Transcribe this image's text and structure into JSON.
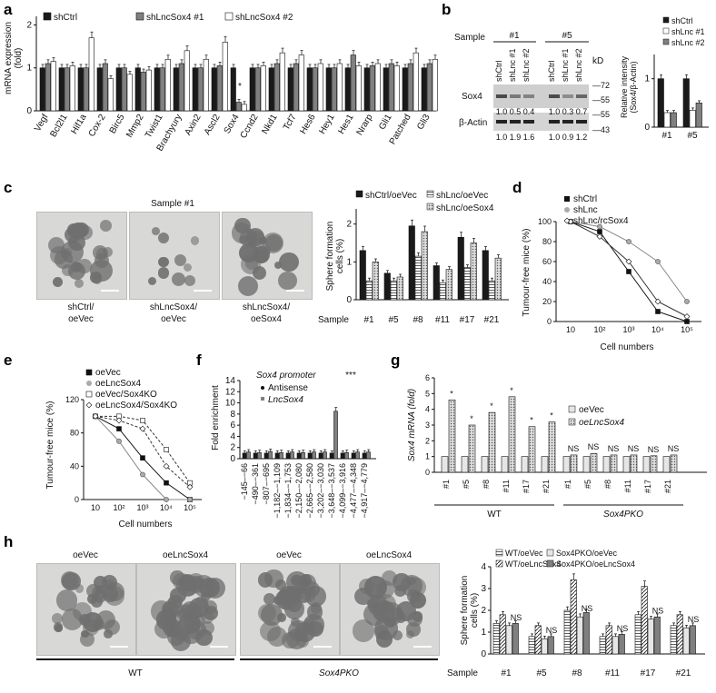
{
  "panels": [
    "a",
    "b",
    "c",
    "d",
    "e",
    "f",
    "g",
    "h"
  ],
  "panel_a": {
    "ylabel": "mRNA expression\n(fold)",
    "yticks": [
      "0",
      "1",
      "2"
    ],
    "legend": [
      "shCtrl",
      "shLncSox4 #1",
      "shLncSox4 #2"
    ],
    "genes": [
      "Vegf",
      "Bcl2l1",
      "Hif1a",
      "Cox-2",
      "Birc5",
      "Mmp2",
      "Twist1",
      "Brachyury",
      "Axin2",
      "Ascl2",
      "Sox4",
      "Ccnd2",
      "Nkd1",
      "Tcf7",
      "Hes6",
      "Hey1",
      "Hes1",
      "Nrarp",
      "Gli1",
      "Patched",
      "Gli3"
    ]
  },
  "panel_b": {
    "sample_label": "Sample",
    "samples": [
      "#1",
      "#5"
    ],
    "lanes": [
      "shCtrl",
      "shLnc #1",
      "shLnc #2",
      "shCtrl",
      "shLnc #1",
      "shLnc #2"
    ],
    "kd_label": "kD",
    "kd_markers": [
      "72",
      "55",
      "55",
      "43"
    ],
    "sox4_label": "Sox4",
    "actin_label": "β-Actin",
    "sox4_values": [
      "1.0",
      "0.5",
      "0.4",
      "1.0",
      "0.3",
      "0.7"
    ],
    "actin_values": [
      "1.0",
      "1.9",
      "1.6",
      "1.0",
      "0.9",
      "1.2"
    ],
    "bar_ylabel": "Relative intensity\n(Sox4/β-Actin)",
    "bar_yticks": [
      "0",
      "1"
    ],
    "legend": [
      "shCtrl",
      "shLnc #1",
      "shLnc #2"
    ],
    "categories": [
      "#1",
      "#5"
    ]
  },
  "panel_c": {
    "title": "Sample  #1",
    "image_labels": [
      "shCtrl/\noeVec",
      "shLncSox4/\noeVec",
      "shLncSox4/\noeSox4"
    ],
    "ylabel": "Sphere formation\ncells (%)",
    "yticks": [
      "0",
      "1",
      "2"
    ],
    "xprefix": "Sample",
    "legend": [
      "shCtrl/oeVec",
      "shLnc/oeVec",
      "shLnc/oeSox4"
    ],
    "categories": [
      "#1",
      "#5",
      "#8",
      "#11",
      "#17",
      "#21"
    ]
  },
  "panel_d": {
    "ylabel": "Tumour-free mice (%)",
    "xlabel": "Cell numbers",
    "yticks": [
      "0",
      "20",
      "40",
      "60",
      "80",
      "100"
    ],
    "xticks": [
      "10",
      "10²",
      "10³",
      "10⁴",
      "10⁵"
    ],
    "legend": [
      "shCtrl",
      "shLnc",
      "shLnc/rcSox4"
    ]
  },
  "panel_e": {
    "ylabel": "Tumour-free mice (%)",
    "xlabel": "Cell numbers",
    "yticks": [
      "0",
      "40",
      "80",
      "120"
    ],
    "xticks": [
      "10",
      "10²",
      "10³",
      "10⁴",
      "10⁵"
    ],
    "legend": [
      "oeVec",
      "oeLncSox4",
      "oeVec/Sox4KO",
      "oeLncSox4/Sox4KO"
    ]
  },
  "panel_f": {
    "ylabel": "Fold enrichment",
    "title": "Sox4 promoter",
    "yticks": [
      "0",
      "2",
      "4",
      "6",
      "8",
      "10",
      "12",
      "14"
    ],
    "legend": [
      "Antisense",
      "LncSox4"
    ],
    "regions": [
      "−145–−66",
      "−490–−361",
      "−807–−695",
      "−1,182–−1,109",
      "−1,834–−1,753",
      "−2,150–−2,080",
      "−2,665–−2,580",
      "−3,202–−3,030",
      "−3,648–−3,537",
      "−4,099–−3,916",
      "−4,477–−4,348",
      "−4,917–−4,779"
    ],
    "sig": "***"
  },
  "panel_g": {
    "ylabel": "Sox4 mRNA (fold)",
    "yticks": [
      "0",
      "1",
      "2",
      "3",
      "4",
      "5",
      "6"
    ],
    "legend": [
      "oeVec",
      "oeLncSox4"
    ],
    "categories": [
      "#1",
      "#5",
      "#8",
      "#11",
      "#17",
      "#21",
      "#1",
      "#5",
      "#8",
      "#11",
      "#17",
      "#21"
    ],
    "group_wt": "WT",
    "group_ko": "Sox4PKO",
    "ns": "NS"
  },
  "panel_h": {
    "image_top": [
      "oeVec",
      "oeLncSox4",
      "oeVec",
      "oeLncSox4"
    ],
    "group_wt": "WT",
    "group_ko": "Sox4PKO",
    "ylabel": "Sphere formation\ncells (%)",
    "yticks": [
      "0",
      "1",
      "2",
      "3",
      "4"
    ],
    "xprefix": "Sample",
    "legend": [
      "WT/oeVec",
      "WT/oeLncSox4",
      "Sox4PKO/oeVec",
      "Sox4PKO/oeLncSox4"
    ],
    "categories": [
      "#1",
      "#5",
      "#8",
      "#11",
      "#17",
      "#21"
    ],
    "ns": "NS"
  },
  "colors": {
    "dark": "#1a1a1a",
    "grey": "#808080",
    "light": "#e6e6e6",
    "blob": "#6f6f6f"
  },
  "chart_data": [
    {
      "type": "bar",
      "panel": "a",
      "categories": [
        "Vegf",
        "Bcl2l1",
        "Hif1a",
        "Cox-2",
        "Birc5",
        "Mmp2",
        "Twist1",
        "Brachyury",
        "Axin2",
        "Ascl2",
        "Sox4",
        "Ccnd2",
        "Nkd1",
        "Tcf7",
        "Hes6",
        "Hey1",
        "Hes1",
        "Nrarp",
        "Gli1",
        "Patched",
        "Gli3"
      ],
      "series": [
        {
          "name": "shCtrl",
          "values": [
            1,
            1,
            1,
            1,
            1,
            1,
            1,
            1,
            1,
            1,
            1,
            1,
            1,
            1,
            1,
            1,
            1,
            1,
            1,
            1,
            1
          ]
        },
        {
          "name": "shLncSox4 #1",
          "values": [
            1.1,
            1.0,
            1.0,
            1.1,
            1.0,
            0.9,
            1.0,
            1.1,
            1.0,
            1.05,
            0.2,
            1.0,
            1.1,
            1.1,
            1.0,
            1.0,
            1.3,
            1.05,
            1.1,
            1.1,
            1.1
          ]
        },
        {
          "name": "shLncSox4 #2",
          "values": [
            1.15,
            1.05,
            1.7,
            0.75,
            0.85,
            0.95,
            1.2,
            1.4,
            1.2,
            1.6,
            0.15,
            1.05,
            1.35,
            1.3,
            1.1,
            1.1,
            1.05,
            1.1,
            1.05,
            1.35,
            1.2
          ]
        }
      ],
      "ylim": [
        0,
        2.2
      ]
    },
    {
      "type": "bar",
      "panel": "b",
      "categories": [
        "#1",
        "#5"
      ],
      "series": [
        {
          "name": "shCtrl",
          "values": [
            1.0,
            1.0
          ]
        },
        {
          "name": "shLnc #1",
          "values": [
            0.3,
            0.35
          ]
        },
        {
          "name": "shLnc #2",
          "values": [
            0.3,
            0.5
          ]
        }
      ],
      "ylim": [
        0,
        1.5
      ]
    },
    {
      "type": "bar",
      "panel": "c",
      "categories": [
        "#1",
        "#5",
        "#8",
        "#11",
        "#17",
        "#21"
      ],
      "series": [
        {
          "name": "shCtrl/oeVec",
          "values": [
            1.3,
            0.7,
            1.95,
            0.9,
            1.65,
            1.3
          ]
        },
        {
          "name": "shLnc/oeVec",
          "values": [
            0.5,
            0.5,
            1.15,
            0.45,
            0.85,
            0.5
          ]
        },
        {
          "name": "shLnc/oeSox4",
          "values": [
            1.0,
            0.6,
            1.8,
            0.8,
            1.5,
            1.1
          ]
        }
      ],
      "ylim": [
        0,
        2.4
      ]
    },
    {
      "type": "line",
      "panel": "d",
      "x": [
        "10",
        "10²",
        "10³",
        "10⁴",
        "10⁵"
      ],
      "series": [
        {
          "name": "shCtrl",
          "values": [
            100,
            90,
            50,
            10,
            0
          ]
        },
        {
          "name": "shLnc",
          "values": [
            100,
            95,
            80,
            60,
            20
          ]
        },
        {
          "name": "shLnc/rcSox4",
          "values": [
            100,
            85,
            60,
            20,
            5
          ]
        }
      ],
      "ylim": [
        0,
        100
      ]
    },
    {
      "type": "line",
      "panel": "e",
      "x": [
        "10",
        "10²",
        "10³",
        "10⁴",
        "10⁵"
      ],
      "series": [
        {
          "name": "oeVec",
          "values": [
            100,
            85,
            50,
            20,
            0
          ]
        },
        {
          "name": "oeLncSox4",
          "values": [
            100,
            70,
            30,
            0,
            0
          ]
        },
        {
          "name": "oeVec/Sox4KO",
          "values": [
            100,
            100,
            95,
            60,
            20
          ]
        },
        {
          "name": "oeLncSox4/Sox4KO",
          "values": [
            100,
            95,
            85,
            40,
            15
          ]
        }
      ],
      "ylim": [
        0,
        120
      ]
    },
    {
      "type": "bar",
      "panel": "f",
      "categories": [
        "−145–−66",
        "−490–−361",
        "−807–−695",
        "−1,182–−1,109",
        "−1,834–−1,753",
        "−2,150–−2,080",
        "−2,665–−2,580",
        "−3,202–−3,030",
        "−3,648–−3,537",
        "−4,099–−3,916",
        "−4,477–−4,348",
        "−4,917–−4,779"
      ],
      "series": [
        {
          "name": "Antisense",
          "values": [
            1,
            1,
            1,
            1,
            1,
            1,
            1,
            1,
            1,
            1,
            1,
            1
          ]
        },
        {
          "name": "LncSox4",
          "values": [
            1.2,
            1.1,
            1.3,
            1.1,
            1.2,
            1.1,
            1.2,
            1.2,
            8.5,
            1.1,
            1.2,
            1.2
          ]
        }
      ],
      "ylim": [
        0,
        14
      ]
    },
    {
      "type": "bar",
      "panel": "g",
      "categories": [
        "#1",
        "#5",
        "#8",
        "#11",
        "#17",
        "#21",
        "#1",
        "#5",
        "#8",
        "#11",
        "#17",
        "#21"
      ],
      "series": [
        {
          "name": "oeVec",
          "values": [
            1,
            1,
            1,
            1,
            1,
            1,
            1,
            1,
            1,
            1,
            1,
            1
          ]
        },
        {
          "name": "oeLncSox4",
          "values": [
            4.6,
            3.0,
            3.8,
            4.8,
            2.9,
            3.2,
            1.1,
            1.2,
            1.1,
            1.1,
            1.05,
            1.1
          ]
        }
      ],
      "ylim": [
        0,
        6
      ]
    },
    {
      "type": "bar",
      "panel": "h",
      "categories": [
        "#1",
        "#5",
        "#8",
        "#11",
        "#17",
        "#21"
      ],
      "series": [
        {
          "name": "WT/oeVec",
          "values": [
            1.4,
            0.8,
            2.0,
            0.8,
            1.8,
            1.3
          ]
        },
        {
          "name": "WT/oeLncSox4",
          "values": [
            1.8,
            1.3,
            3.4,
            1.3,
            3.1,
            1.8
          ]
        },
        {
          "name": "Sox4PKO/oeVec",
          "values": [
            1.3,
            0.7,
            1.7,
            0.8,
            1.6,
            1.2
          ]
        },
        {
          "name": "Sox4PKO/oeLncSox4",
          "values": [
            1.4,
            0.8,
            1.9,
            0.9,
            1.7,
            1.3
          ]
        }
      ],
      "ylim": [
        0,
        4
      ]
    }
  ]
}
